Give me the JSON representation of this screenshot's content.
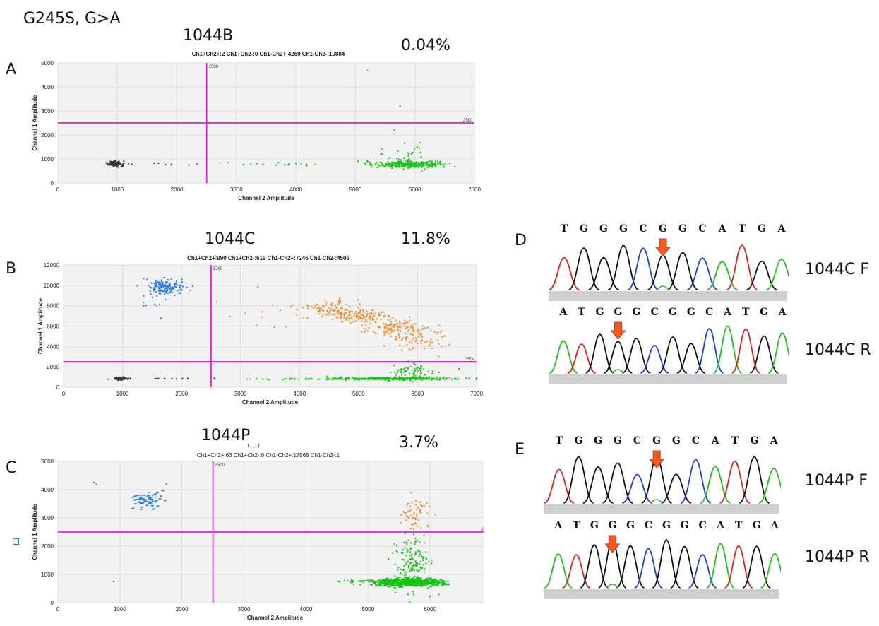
{
  "figure": {
    "mutation_label": "G245S, G>A",
    "panels": [
      {
        "letter": "A",
        "sample": "1044B",
        "percent": "0.04%",
        "counts": "Ch1+Ch2+:2  Ch1+Ch2-:0  Ch1-Ch2+:4269  Ch1-Ch2-:10884"
      },
      {
        "letter": "B",
        "sample": "1044C",
        "percent": "11.8%",
        "counts": "Ch1+Ch2+:990  Ch1+Ch2-:619  Ch1-Ch2+:7246  Ch1-Ch2-:4506"
      },
      {
        "letter": "C",
        "sample": "1044P",
        "percent": "3.7%",
        "counts": "Ch1+Ch2+:63  Ch1+Ch2-:0  Ch1-Ch2+:17565  Ch1-Ch2-:1"
      }
    ],
    "seq_panels": [
      {
        "letter": "D",
        "traces": [
          {
            "label": "1044C F",
            "bases": "TGGGCGGCATGA"
          },
          {
            "label": "1044C R",
            "bases": "ATGGGCGGCATGA"
          }
        ]
      },
      {
        "letter": "E",
        "traces": [
          {
            "label": "1044P F",
            "bases": "TGGGCGGCATGA"
          },
          {
            "label": "1044P R",
            "bases": "ATGGGCGGCATGA"
          }
        ]
      }
    ]
  },
  "chart_data": [
    {
      "type": "scatter",
      "panel": "A",
      "xlabel": "Channel 2 Amplitude",
      "ylabel": "Channel 1 Amplitude",
      "xlim": [
        0,
        7000
      ],
      "ylim": [
        0,
        5000
      ],
      "xticks": [
        0,
        1000,
        2000,
        3000,
        4000,
        5000,
        6000,
        7000
      ],
      "yticks": [
        0,
        1000,
        2000,
        3000,
        4000,
        5000
      ],
      "threshold_x": 2500,
      "threshold_y": 2500,
      "threshold_x_label": "2500",
      "threshold_y_label": "2500",
      "grid": true,
      "clusters": [
        {
          "color": "#3a3a3a",
          "cx": 950,
          "cy": 800,
          "sx": 60,
          "sy": 50,
          "n": 140,
          "shape": "dot"
        },
        {
          "color": "#17c217",
          "cx": 5900,
          "cy": 780,
          "sx": 280,
          "sy": 70,
          "n": 320,
          "shape": "dot"
        },
        {
          "color": "#17c217",
          "cx": 5850,
          "cy": 1200,
          "sx": 200,
          "sy": 300,
          "n": 30,
          "shape": "dot"
        },
        {
          "color": "#17c217",
          "cx": 3800,
          "cy": 790,
          "sx": 900,
          "sy": 40,
          "n": 22,
          "shape": "dot"
        },
        {
          "color": "#3a3a3a",
          "cx": 1700,
          "cy": 820,
          "sx": 350,
          "sy": 30,
          "n": 6,
          "shape": "dot"
        }
      ],
      "points": [
        {
          "x": 5200,
          "y": 4700,
          "color": "#f08a2a"
        },
        {
          "x": 5750,
          "y": 3200,
          "color": "#17c217"
        },
        {
          "x": 5650,
          "y": 2200,
          "color": "#17c217"
        }
      ]
    },
    {
      "type": "scatter",
      "panel": "B",
      "xlabel": "Channel 2 Amplitude",
      "ylabel": "Channel 1 Amplitude",
      "xlim": [
        0,
        7000
      ],
      "ylim": [
        0,
        12000
      ],
      "xticks": [
        0,
        1000,
        2000,
        3000,
        4000,
        5000,
        6000,
        7000
      ],
      "yticks": [
        0,
        2000,
        4000,
        6000,
        8000,
        10000,
        12000
      ],
      "threshold_x": 2500,
      "threshold_y": 2500,
      "threshold_x_label": "2500",
      "threshold_y_label": "2500",
      "grid": true,
      "clusters": [
        {
          "color": "#2a7be0",
          "cx": 1750,
          "cy": 9800,
          "sx": 150,
          "sy": 400,
          "n": 160,
          "shape": "dot"
        },
        {
          "color": "#2a7be0",
          "cx": 1500,
          "cy": 7500,
          "sx": 150,
          "sy": 700,
          "n": 8,
          "shape": "dot"
        },
        {
          "color": "#f08a2a",
          "cx": 4500,
          "cy": 7800,
          "sx": 250,
          "sy": 400,
          "n": 80,
          "shape": "dot"
        },
        {
          "color": "#f08a2a",
          "cx": 5000,
          "cy": 7000,
          "sx": 220,
          "sy": 350,
          "n": 120,
          "shape": "dot"
        },
        {
          "color": "#f08a2a",
          "cx": 5600,
          "cy": 5900,
          "sx": 250,
          "sy": 450,
          "n": 120,
          "shape": "dot"
        },
        {
          "color": "#f08a2a",
          "cx": 6000,
          "cy": 4800,
          "sx": 220,
          "sy": 600,
          "n": 70,
          "shape": "dot"
        },
        {
          "color": "#f08a2a",
          "cx": 3400,
          "cy": 7000,
          "sx": 500,
          "sy": 1300,
          "n": 12,
          "shape": "dot"
        },
        {
          "color": "#17c217",
          "cx": 5600,
          "cy": 850,
          "sx": 500,
          "sy": 70,
          "n": 330,
          "shape": "dot"
        },
        {
          "color": "#17c217",
          "cx": 5900,
          "cy": 1500,
          "sx": 200,
          "sy": 400,
          "n": 60,
          "shape": "dot"
        },
        {
          "color": "#17c217",
          "cx": 4100,
          "cy": 820,
          "sx": 600,
          "sy": 40,
          "n": 50,
          "shape": "dot"
        },
        {
          "color": "#3a3a3a",
          "cx": 960,
          "cy": 830,
          "sx": 70,
          "sy": 60,
          "n": 90,
          "shape": "dot"
        },
        {
          "color": "#3a3a3a",
          "cx": 1700,
          "cy": 830,
          "sx": 300,
          "sy": 30,
          "n": 10,
          "shape": "dot"
        }
      ],
      "points": [
        {
          "x": 2150,
          "y": 9500,
          "color": "#2a7be0"
        },
        {
          "x": 6700,
          "y": 1800,
          "color": "#17c217"
        }
      ]
    },
    {
      "type": "scatter",
      "panel": "C",
      "xlabel": "Channel 2 Amplitude",
      "ylabel": "Channel 1 Amplitude",
      "xlim": [
        0,
        7000
      ],
      "ylim": [
        0,
        5000
      ],
      "xticks": [
        0,
        1000,
        2000,
        3000,
        4000,
        5000,
        6000,
        7000
      ],
      "yticks": [
        0,
        1000,
        2000,
        3000,
        4000,
        5000
      ],
      "threshold_x": 2500,
      "threshold_y": 2500,
      "threshold_x_label": "2500",
      "threshold_y_label": "2500",
      "grid": true,
      "clusters": [
        {
          "color": "#2a7be0",
          "cx": 1450,
          "cy": 3650,
          "sx": 120,
          "sy": 170,
          "n": 60,
          "shape": "dash"
        },
        {
          "color": "#f08a2a",
          "cx": 5750,
          "cy": 3100,
          "sx": 120,
          "sy": 300,
          "n": 60,
          "shape": "dot"
        },
        {
          "color": "#17c217",
          "cx": 5650,
          "cy": 720,
          "sx": 280,
          "sy": 70,
          "n": 500,
          "shape": "dash"
        },
        {
          "color": "#17c217",
          "cx": 5700,
          "cy": 1400,
          "sx": 150,
          "sy": 500,
          "n": 150,
          "shape": "dot"
        },
        {
          "color": "#17c217",
          "cx": 4900,
          "cy": 740,
          "sx": 300,
          "sy": 40,
          "n": 25,
          "shape": "dot"
        }
      ],
      "points": [
        {
          "x": 580,
          "y": 4250,
          "color": "#2a7be0"
        },
        {
          "x": 620,
          "y": 4180,
          "color": "#2a7be0"
        },
        {
          "x": 1750,
          "y": 4200,
          "color": "#2a7be0"
        },
        {
          "x": 900,
          "y": 750,
          "color": "#3a3a3a"
        },
        {
          "x": 6950,
          "y": 1450,
          "color": "#17c217"
        }
      ]
    }
  ]
}
